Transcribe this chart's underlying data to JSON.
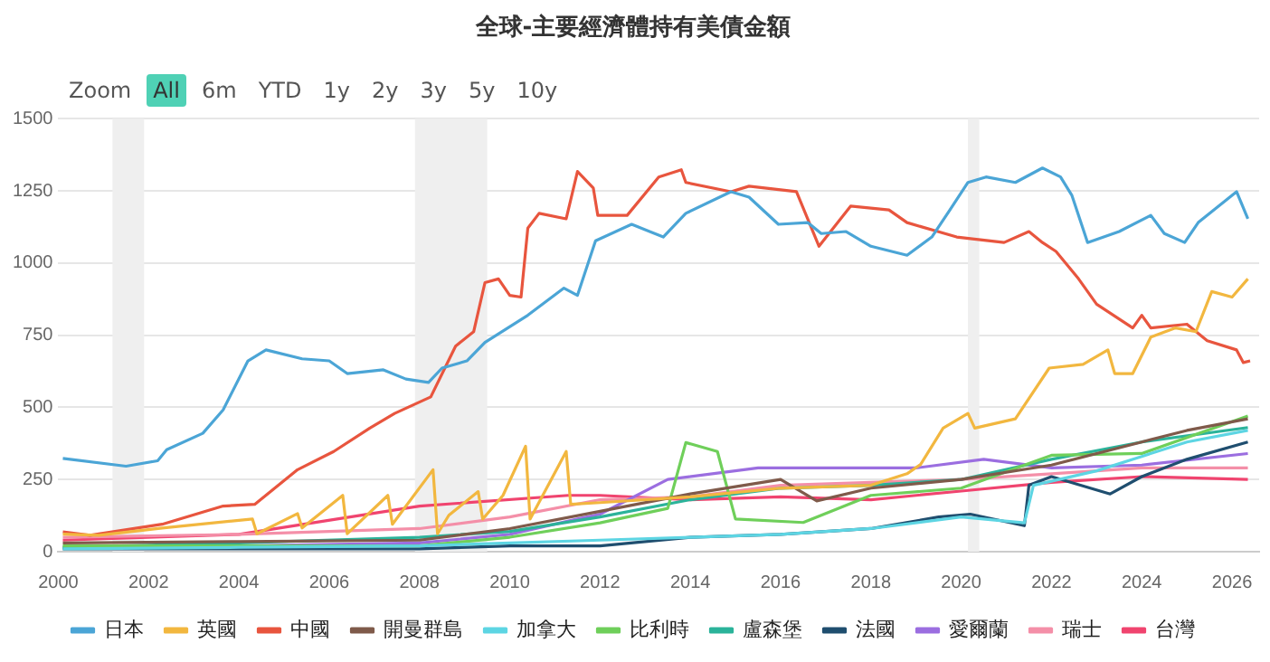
{
  "chart_data": {
    "type": "line",
    "title": "全球-主要經濟體持有美債金額",
    "annotations": [
      "Zoom",
      "All",
      "6m",
      "YTD",
      "1y",
      "2y",
      "3y",
      "5y",
      "10y"
    ],
    "xlim": [
      2000,
      2026.6
    ],
    "xticks": [
      2000,
      2002,
      2004,
      2006,
      2008,
      2010,
      2012,
      2014,
      2016,
      2018,
      2020,
      2022,
      2024,
      2026
    ],
    "ylim": [
      0,
      1500
    ],
    "yticks": [
      0,
      250,
      500,
      750,
      1000,
      1250,
      1500
    ],
    "grid": "y",
    "legend": "bottom",
    "marker": "none",
    "line_style": "solid",
    "bands": [
      {
        "axis": "x",
        "from": 2001.2,
        "to": 2001.9,
        "color": "#efefef"
      },
      {
        "axis": "x",
        "from": 2007.9,
        "to": 2009.5,
        "color": "#efefef"
      },
      {
        "axis": "x",
        "from": 2020.15,
        "to": 2020.4,
        "color": "#efefef"
      }
    ],
    "series": [
      {
        "name": "日本",
        "color": "#4ba5d6",
        "x": [
          2000.1,
          2001.5,
          2002.2,
          2002.4,
          2003.2,
          2003.65,
          2004.2,
          2004.6,
          2005.4,
          2006.0,
          2006.4,
          2007.2,
          2007.7,
          2008.2,
          2008.5,
          2009.05,
          2009.45,
          2010.4,
          2011.2,
          2011.5,
          2011.9,
          2012.7,
          2013.4,
          2013.9,
          2014.9,
          2015.3,
          2015.95,
          2016.6,
          2016.9,
          2017.45,
          2018.0,
          2018.8,
          2019.35,
          2019.75,
          2020.15,
          2020.55,
          2021.2,
          2021.8,
          2022.2,
          2022.45,
          2022.8,
          2023.5,
          2024.2,
          2024.5,
          2024.95,
          2025.25,
          2026.1,
          2026.35
        ],
        "values": [
          323,
          296,
          315,
          353,
          410,
          491,
          661,
          699,
          668,
          661,
          617,
          630,
          598,
          586,
          636,
          661,
          725,
          819,
          913,
          888,
          1077,
          1134,
          1090,
          1172,
          1247,
          1228,
          1134,
          1140,
          1102,
          1109,
          1058,
          1027,
          1090,
          1184,
          1279,
          1298,
          1279,
          1329,
          1298,
          1235,
          1071,
          1109,
          1165,
          1102,
          1071,
          1140,
          1247,
          1153
        ]
      },
      {
        "name": "英國",
        "color": "#f2b73f",
        "x": [
          2000.1,
          2000.9,
          2002.3,
          2004.3,
          2004.4,
          2005.3,
          2005.4,
          2006.3,
          2006.4,
          2007.3,
          2007.4,
          2008.3,
          2008.4,
          2008.65,
          2009.3,
          2009.4,
          2009.85,
          2010.35,
          2010.45,
          2011.25,
          2011.35,
          2012.0,
          2014.0,
          2016.0,
          2018.0,
          2018.8,
          2019.1,
          2019.6,
          2020.15,
          2020.3,
          2021.2,
          2021.95,
          2022.7,
          2023.25,
          2023.4,
          2023.8,
          2024.2,
          2024.75,
          2025.2,
          2025.55,
          2026.0,
          2026.35
        ],
        "values": [
          61,
          57,
          82,
          113,
          62,
          132,
          82,
          195,
          62,
          195,
          95,
          284,
          62,
          126,
          208,
          113,
          195,
          365,
          113,
          347,
          164,
          170,
          190,
          220,
          230,
          270,
          302,
          428,
          479,
          428,
          460,
          636,
          649,
          699,
          617,
          617,
          743,
          775,
          762,
          901,
          882,
          945
        ]
      },
      {
        "name": "中國",
        "color": "#e8553e",
        "x": [
          2000.1,
          2000.7,
          2002.3,
          2003.65,
          2004.35,
          2005.3,
          2006.1,
          2006.9,
          2007.45,
          2008.25,
          2008.8,
          2009.2,
          2009.45,
          2009.75,
          2010.0,
          2010.25,
          2010.4,
          2010.65,
          2011.25,
          2011.5,
          2011.85,
          2011.95,
          2012.6,
          2013.3,
          2013.8,
          2013.9,
          2014.9,
          2015.3,
          2016.35,
          2016.85,
          2017.55,
          2018.4,
          2018.8,
          2019.9,
          2020.95,
          2021.5,
          2021.8,
          2022.1,
          2022.6,
          2023.0,
          2023.8,
          2024.0,
          2024.2,
          2025.0,
          2025.45,
          2026.1,
          2026.25,
          2026.4
        ],
        "values": [
          69,
          57,
          95,
          158,
          164,
          284,
          347,
          428,
          479,
          536,
          712,
          762,
          932,
          945,
          888,
          882,
          1121,
          1172,
          1153,
          1317,
          1260,
          1165,
          1165,
          1298,
          1323,
          1279,
          1247,
          1266,
          1247,
          1058,
          1197,
          1184,
          1140,
          1090,
          1071,
          1109,
          1071,
          1040,
          945,
          857,
          775,
          819,
          775,
          788,
          731,
          699,
          655,
          661
        ]
      },
      {
        "name": "開曼群島",
        "color": "#7f5a4a",
        "x": [
          2000.1,
          2004,
          2008,
          2010,
          2012,
          2014,
          2016,
          2016.8,
          2018,
          2020,
          2022,
          2024,
          2025,
          2026.35
        ],
        "values": [
          30,
          35,
          40,
          80,
          140,
          200,
          250,
          176,
          220,
          250,
          300,
          380,
          420,
          460
        ]
      },
      {
        "name": "加拿大",
        "color": "#5dd5e3",
        "x": [
          2000.1,
          2004,
          2008,
          2010,
          2012,
          2014,
          2016,
          2018,
          2020,
          2021.4,
          2021.6,
          2023,
          2024,
          2025,
          2026.35
        ],
        "values": [
          10,
          15,
          20,
          30,
          40,
          50,
          60,
          80,
          120,
          100,
          230,
          280,
          330,
          380,
          420
        ]
      },
      {
        "name": "比利時",
        "color": "#6fcf5a",
        "x": [
          2000.1,
          2004,
          2008,
          2010,
          2012,
          2013.5,
          2013.9,
          2014.6,
          2015.0,
          2016.5,
          2018.0,
          2020.0,
          2022.0,
          2024.0,
          2026.35
        ],
        "values": [
          20,
          20,
          20,
          50,
          100,
          150,
          378,
          347,
          113,
          101,
          195,
          220,
          334,
          340,
          470
        ]
      },
      {
        "name": "盧森堡",
        "color": "#2bb39a",
        "x": [
          2000.1,
          2004,
          2008,
          2010,
          2012,
          2014,
          2016,
          2018,
          2020,
          2022,
          2024,
          2026.35
        ],
        "values": [
          15,
          30,
          50,
          70,
          120,
          180,
          220,
          230,
          250,
          320,
          380,
          430
        ]
      },
      {
        "name": "法國",
        "color": "#1f4e6f",
        "x": [
          2000.1,
          2004,
          2008,
          2010,
          2012,
          2014,
          2016,
          2018,
          2019.5,
          2020.2,
          2021.4,
          2021.5,
          2022.0,
          2023.3,
          2024.0,
          2025.0,
          2026.35
        ],
        "values": [
          10,
          10,
          10,
          20,
          20,
          50,
          60,
          80,
          120,
          130,
          90,
          230,
          260,
          200,
          260,
          320,
          380
        ]
      },
      {
        "name": "愛爾蘭",
        "color": "#9b6ee0",
        "x": [
          2000.1,
          2004,
          2008,
          2010,
          2011.5,
          2012,
          2013.5,
          2015.5,
          2017,
          2019,
          2020.5,
          2022,
          2024,
          2026.35
        ],
        "values": [
          15,
          20,
          30,
          60,
          113,
          130,
          250,
          290,
          290,
          290,
          320,
          290,
          300,
          340
        ]
      },
      {
        "name": "瑞士",
        "color": "#f48fa8",
        "x": [
          2000.1,
          2004,
          2008,
          2010,
          2012,
          2014,
          2016,
          2018,
          2020,
          2022,
          2024,
          2026.35
        ],
        "values": [
          50,
          60,
          80,
          120,
          180,
          190,
          230,
          240,
          250,
          270,
          290,
          290
        ]
      },
      {
        "name": "台灣",
        "color": "#f0446f",
        "x": [
          2000.1,
          2004,
          2008,
          2011.3,
          2012,
          2014,
          2016,
          2018,
          2020,
          2022,
          2024,
          2026.35
        ],
        "values": [
          40,
          60,
          158,
          195,
          195,
          180,
          190,
          180,
          210,
          240,
          260,
          250
        ]
      }
    ]
  }
}
